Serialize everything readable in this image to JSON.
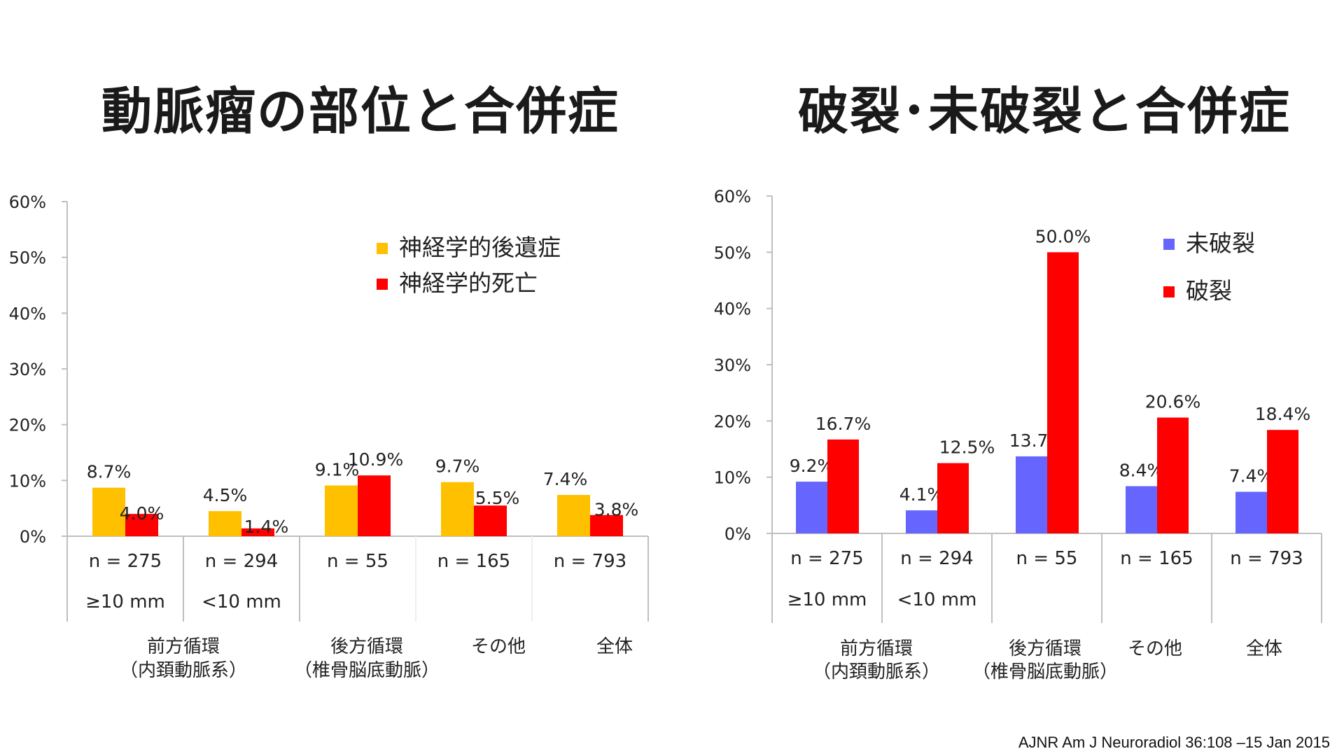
{
  "left": {
    "title": "動脈瘤の部位と合併症",
    "chart_data": {
      "type": "bar",
      "y_ticks": [
        "60%",
        "50%",
        "40%",
        "30%",
        "20%",
        "10%",
        "0%"
      ],
      "ylim": [
        0,
        60
      ],
      "categories": [
        "n = 275",
        "n = 294",
        "n = 55",
        "n = 165",
        "n = 793"
      ],
      "subcategories": [
        "≥10 mm",
        "<10 mm",
        "",
        "",
        ""
      ],
      "groups": [
        {
          "lines": [
            "前方循環",
            "（内頚動脈系）"
          ]
        },
        {
          "lines": [
            "後方循環",
            "（椎骨脳底動脈）"
          ]
        },
        {
          "lines": [
            "その他"
          ]
        },
        {
          "lines": [
            "全体"
          ]
        }
      ],
      "series": [
        {
          "name": "神経学的後遺症",
          "color": "#ffc000",
          "values": [
            8.7,
            4.5,
            9.1,
            9.7,
            7.4
          ],
          "labels": [
            "8.7%",
            "4.5%",
            "9.1%",
            "9.7%",
            "7.4%"
          ]
        },
        {
          "name": "神経学的死亡",
          "color": "#ff0000",
          "values": [
            4.0,
            1.4,
            10.9,
            5.5,
            3.8
          ],
          "labels": [
            "4.0%",
            "1.4%",
            "10.9%",
            "5.5%",
            "3.8%"
          ]
        }
      ]
    }
  },
  "right": {
    "title": "破裂･未破裂と合併症",
    "chart_data": {
      "type": "bar",
      "y_ticks": [
        "60%",
        "50%",
        "40%",
        "30%",
        "20%",
        "10%",
        "0%"
      ],
      "ylim": [
        0,
        60
      ],
      "categories": [
        "n = 275",
        "n = 294",
        "n = 55",
        "n = 165",
        "n = 793"
      ],
      "subcategories": [
        "≥10 mm",
        "<10 mm",
        "",
        "",
        ""
      ],
      "groups": [
        {
          "lines": [
            "前方循環",
            "（内頚動脈系）"
          ]
        },
        {
          "lines": [
            "後方循環",
            "（椎骨脳底動脈）"
          ]
        },
        {
          "lines": [
            "その他"
          ]
        },
        {
          "lines": [
            "全体"
          ]
        }
      ],
      "series": [
        {
          "name": "未破裂",
          "color": "#6666ff",
          "values": [
            9.2,
            4.1,
            13.7,
            8.4,
            7.4
          ],
          "labels": [
            "9.2%",
            "4.1%",
            "13.7%",
            "8.4%",
            "7.4%"
          ]
        },
        {
          "name": "破裂",
          "color": "#ff0000",
          "values": [
            16.7,
            12.5,
            50.0,
            20.6,
            18.4
          ],
          "labels": [
            "16.7%",
            "12.5%",
            "50.0%",
            "20.6%",
            "18.4%"
          ]
        }
      ]
    }
  },
  "citation": "AJNR Am J Neuroradiol 36:108 –15 Jan 2015"
}
